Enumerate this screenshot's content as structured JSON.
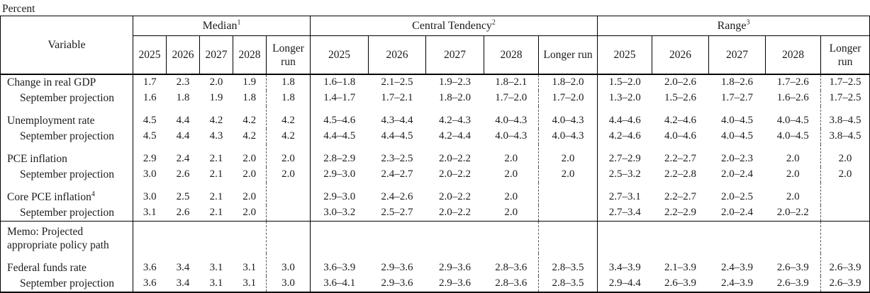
{
  "page": {
    "units_label": "Percent"
  },
  "table": {
    "variable_header": "Variable",
    "groups": [
      {
        "label": "Median",
        "sup": "1"
      },
      {
        "label": "Central Tendency",
        "sup": "2"
      },
      {
        "label": "Range",
        "sup": "3"
      }
    ],
    "year_headers": [
      "2025",
      "2026",
      "2027",
      "2028",
      "Longer run"
    ],
    "rows": [
      {
        "label": "Change in real GDP",
        "indent": false,
        "gap": false,
        "median": [
          "1.7",
          "2.3",
          "2.0",
          "1.9",
          "1.8"
        ],
        "central_tendency": [
          "1.6–1.8",
          "2.1–2.5",
          "1.9–2.3",
          "1.8–2.1",
          "1.8–2.0"
        ],
        "range": [
          "1.5–2.0",
          "2.0–2.6",
          "1.8–2.6",
          "1.7–2.6",
          "1.7–2.5"
        ]
      },
      {
        "label": "September projection",
        "indent": true,
        "gap": false,
        "median": [
          "1.6",
          "1.8",
          "1.9",
          "1.8",
          "1.8"
        ],
        "central_tendency": [
          "1.4–1.7",
          "1.7–2.1",
          "1.8–2.0",
          "1.7–2.0",
          "1.7–2.0"
        ],
        "range": [
          "1.3–2.0",
          "1.5–2.6",
          "1.7–2.7",
          "1.6–2.6",
          "1.7–2.5"
        ]
      },
      {
        "label": "Unemployment rate",
        "indent": false,
        "gap": true,
        "median": [
          "4.5",
          "4.4",
          "4.2",
          "4.2",
          "4.2"
        ],
        "central_tendency": [
          "4.5–4.6",
          "4.3–4.4",
          "4.2–4.3",
          "4.0–4.3",
          "4.0–4.3"
        ],
        "range": [
          "4.4–4.6",
          "4.2–4.6",
          "4.0–4.5",
          "4.0–4.5",
          "3.8–4.5"
        ]
      },
      {
        "label": "September projection",
        "indent": true,
        "gap": false,
        "median": [
          "4.5",
          "4.4",
          "4.3",
          "4.2",
          "4.2"
        ],
        "central_tendency": [
          "4.4–4.5",
          "4.4–4.5",
          "4.2–4.4",
          "4.0–4.3",
          "4.0–4.3"
        ],
        "range": [
          "4.2–4.6",
          "4.0–4.6",
          "4.0–4.5",
          "4.0–4.5",
          "3.8–4.5"
        ]
      },
      {
        "label": "PCE inflation",
        "indent": false,
        "gap": true,
        "median": [
          "2.9",
          "2.4",
          "2.1",
          "2.0",
          "2.0"
        ],
        "central_tendency": [
          "2.8–2.9",
          "2.3–2.5",
          "2.0–2.2",
          "2.0",
          "2.0"
        ],
        "range": [
          "2.7–2.9",
          "2.2–2.7",
          "2.0–2.3",
          "2.0",
          "2.0"
        ]
      },
      {
        "label": "September projection",
        "indent": true,
        "gap": false,
        "median": [
          "3.0",
          "2.6",
          "2.1",
          "2.0",
          "2.0"
        ],
        "central_tendency": [
          "2.9–3.0",
          "2.4–2.7",
          "2.0–2.2",
          "2.0",
          "2.0"
        ],
        "range": [
          "2.5–3.2",
          "2.2–2.8",
          "2.0–2.4",
          "2.0",
          "2.0"
        ]
      },
      {
        "label": "Core PCE inflation",
        "sup": "4",
        "indent": false,
        "gap": true,
        "median": [
          "3.0",
          "2.5",
          "2.1",
          "2.0",
          ""
        ],
        "central_tendency": [
          "2.9–3.0",
          "2.4–2.6",
          "2.0–2.2",
          "2.0",
          ""
        ],
        "range": [
          "2.7–3.1",
          "2.2–2.7",
          "2.0–2.5",
          "2.0",
          ""
        ]
      },
      {
        "label": "September projection",
        "indent": true,
        "gap": false,
        "median": [
          "3.1",
          "2.6",
          "2.1",
          "2.0",
          ""
        ],
        "central_tendency": [
          "3.0–3.2",
          "2.5–2.7",
          "2.0–2.2",
          "2.0",
          ""
        ],
        "range": [
          "2.7–3.4",
          "2.2–2.9",
          "2.0–2.4",
          "2.0–2.2",
          ""
        ]
      },
      {
        "label": "Memo: Projected\nappropriate policy path",
        "indent": false,
        "memo": true,
        "median": [
          "",
          "",
          "",
          "",
          ""
        ],
        "central_tendency": [
          "",
          "",
          "",
          "",
          ""
        ],
        "range": [
          "",
          "",
          "",
          "",
          ""
        ]
      },
      {
        "label": "Federal funds rate",
        "indent": false,
        "gap": true,
        "median": [
          "3.6",
          "3.4",
          "3.1",
          "3.1",
          "3.0"
        ],
        "central_tendency": [
          "3.6–3.9",
          "2.9–3.6",
          "2.9–3.6",
          "2.8–3.6",
          "2.8–3.5"
        ],
        "range": [
          "3.4–3.9",
          "2.1–3.9",
          "2.4–3.9",
          "2.6–3.9",
          "2.6–3.9"
        ]
      },
      {
        "label": "September projection",
        "indent": true,
        "gap": false,
        "median": [
          "3.6",
          "3.4",
          "3.1",
          "3.1",
          "3.0"
        ],
        "central_tendency": [
          "3.6–4.1",
          "2.9–3.6",
          "2.9–3.6",
          "2.8–3.6",
          "2.8–3.5"
        ],
        "range": [
          "2.9–4.4",
          "2.6–3.9",
          "2.4–3.9",
          "2.6–3.9",
          "2.6–3.9"
        ]
      }
    ]
  }
}
